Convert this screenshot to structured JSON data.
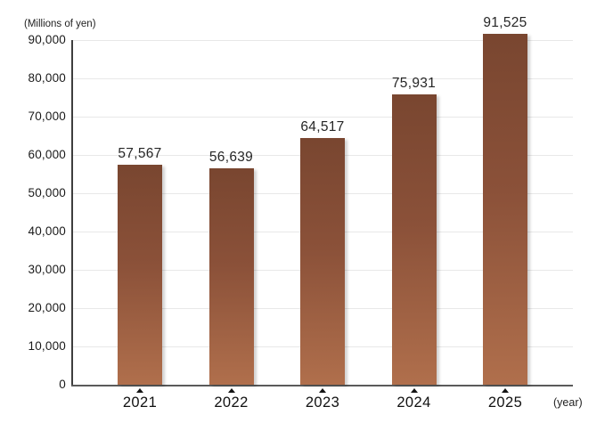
{
  "chart_data": {
    "type": "bar",
    "title": "",
    "unit_label": "(Millions of yen)",
    "x_unit_label": "(year)",
    "categories": [
      "2021",
      "2022",
      "2023",
      "2024",
      "2025"
    ],
    "values": [
      57567,
      56639,
      64517,
      75931,
      91525
    ],
    "value_labels": [
      "57,567",
      "56,639",
      "64,517",
      "75,931",
      "91,525"
    ],
    "xlabel": "(year)",
    "ylabel": "(Millions of yen)",
    "ylim": [
      0,
      90000
    ],
    "ytick_step": 10000,
    "yticks": [
      "0",
      "10,000",
      "20,000",
      "30,000",
      "40,000",
      "50,000",
      "60,000",
      "70,000",
      "80,000",
      "90,000"
    ],
    "grid": true,
    "legend": "none",
    "marker": "triangle-up",
    "colors": {
      "bar_top": "#794630",
      "bar_bottom": "#b06f4c",
      "grid": "#e8e8e8",
      "axis_y": "#3e3e3e",
      "axis_x": "#5a5a5a",
      "text": "#1a1a1a"
    }
  }
}
